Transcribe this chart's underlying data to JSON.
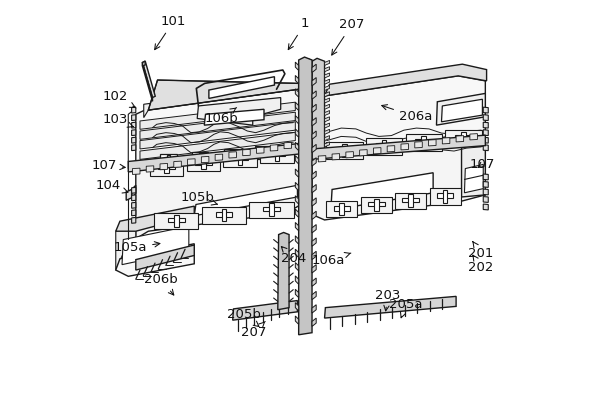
{
  "background_color": "#ffffff",
  "line_color": "#1a1a1a",
  "figsize": [
    5.99,
    4.19
  ],
  "dpi": 100,
  "annotations": [
    [
      "1",
      [
        0.513,
        0.945
      ],
      [
        0.468,
        0.875
      ]
    ],
    [
      "101",
      [
        0.198,
        0.95
      ],
      [
        0.148,
        0.875
      ]
    ],
    [
      "102",
      [
        0.058,
        0.77
      ],
      [
        0.115,
        0.74
      ]
    ],
    [
      "103",
      [
        0.058,
        0.715
      ],
      [
        0.11,
        0.695
      ]
    ],
    [
      "104",
      [
        0.042,
        0.558
      ],
      [
        0.098,
        0.538
      ]
    ],
    [
      "105a",
      [
        0.095,
        0.408
      ],
      [
        0.175,
        0.42
      ]
    ],
    [
      "105b",
      [
        0.255,
        0.528
      ],
      [
        0.305,
        0.512
      ]
    ],
    [
      "106a",
      [
        0.57,
        0.378
      ],
      [
        0.63,
        0.398
      ]
    ],
    [
      "106b",
      [
        0.312,
        0.718
      ],
      [
        0.355,
        0.748
      ]
    ],
    [
      "107",
      [
        0.032,
        0.605
      ],
      [
        0.092,
        0.6
      ]
    ],
    [
      "107",
      [
        0.938,
        0.608
      ],
      [
        0.92,
        0.595
      ]
    ],
    [
      "201",
      [
        0.935,
        0.395
      ],
      [
        0.91,
        0.43
      ]
    ],
    [
      "202",
      [
        0.935,
        0.362
      ],
      [
        0.91,
        0.398
      ]
    ],
    [
      "203",
      [
        0.712,
        0.295
      ],
      [
        0.705,
        0.248
      ]
    ],
    [
      "204",
      [
        0.485,
        0.382
      ],
      [
        0.45,
        0.418
      ]
    ],
    [
      "205a",
      [
        0.755,
        0.272
      ],
      [
        0.74,
        0.232
      ]
    ],
    [
      "205b",
      [
        0.368,
        0.248
      ],
      [
        0.405,
        0.218
      ]
    ],
    [
      "206a",
      [
        0.778,
        0.722
      ],
      [
        0.688,
        0.752
      ]
    ],
    [
      "206b",
      [
        0.168,
        0.332
      ],
      [
        0.205,
        0.288
      ]
    ],
    [
      "207",
      [
        0.625,
        0.942
      ],
      [
        0.572,
        0.862
      ]
    ],
    [
      "207",
      [
        0.39,
        0.205
      ],
      [
        0.418,
        0.232
      ]
    ]
  ]
}
